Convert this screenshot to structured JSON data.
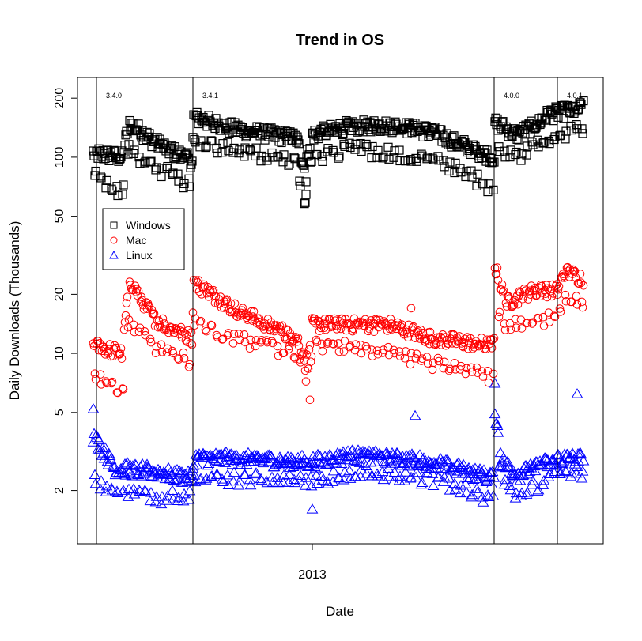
{
  "chart_data": {
    "type": "scatter",
    "title": "Trend in OS",
    "xlabel": "Date",
    "ylabel": "Daily Downloads (Thousands)",
    "y_scale": "log",
    "ylim": [
      1.07,
      255
    ],
    "y_ticks": [
      2,
      5,
      10,
      20,
      50,
      100,
      200
    ],
    "x_unit": "days since 2013-01-01",
    "xlim": [
      -297,
      368
    ],
    "x_day_range": [
      -277,
      343
    ],
    "x_ticks": [
      {
        "value": 0,
        "label": "2013"
      }
    ],
    "grid": false,
    "legend": {
      "placement": "left, upper-middle",
      "entries": [
        {
          "label": "Windows",
          "marker": "square",
          "color": "#000000"
        },
        {
          "label": "Mac",
          "marker": "circle",
          "color": "#ff0000"
        },
        {
          "label": "Linux",
          "marker": "triangle",
          "color": "#0000ff"
        }
      ]
    },
    "releases": [
      {
        "label": "3.4.0",
        "day": -273
      },
      {
        "label": "3.4.1",
        "day": -151
      },
      {
        "label": "4.0.0",
        "day": 230
      },
      {
        "label": "4.0.1",
        "day": 310
      }
    ],
    "series": [
      {
        "name": "Windows",
        "color": "#000000",
        "marker": "square",
        "trend_weekday_weekend": [
          [
            -277,
            105,
            80
          ],
          [
            -240,
            100,
            65
          ],
          [
            -232,
            150,
            110
          ],
          [
            -200,
            120,
            90
          ],
          [
            -152,
            95,
            72
          ],
          [
            -150,
            160,
            120
          ],
          [
            -100,
            140,
            110
          ],
          [
            -20,
            125,
            95
          ],
          [
            -10,
            88,
            60
          ],
          [
            0,
            130,
            100
          ],
          [
            50,
            145,
            110
          ],
          [
            100,
            145,
            105
          ],
          [
            150,
            135,
            100
          ],
          [
            229,
            100,
            70
          ],
          [
            231,
            150,
            110
          ],
          [
            260,
            130,
            100
          ],
          [
            300,
            165,
            125
          ],
          [
            343,
            180,
            140
          ]
        ],
        "outliers": [
          [
            -10,
            58
          ],
          [
            -8,
            75
          ]
        ]
      },
      {
        "name": "Mac",
        "color": "#ff0000",
        "marker": "circle",
        "trend_weekday_weekend": [
          [
            -277,
            11,
            8
          ],
          [
            -240,
            10,
            6.2
          ],
          [
            -232,
            24,
            14
          ],
          [
            -200,
            15,
            11
          ],
          [
            -152,
            12,
            9
          ],
          [
            -150,
            23,
            15
          ],
          [
            -100,
            17,
            12
          ],
          [
            -20,
            12,
            10
          ],
          [
            -5,
            9,
            7
          ],
          [
            0,
            14,
            11
          ],
          [
            50,
            14,
            11
          ],
          [
            100,
            14,
            10
          ],
          [
            150,
            12,
            9
          ],
          [
            229,
            11,
            7.5
          ],
          [
            231,
            28,
            18
          ],
          [
            245,
            18,
            14
          ],
          [
            280,
            21,
            15
          ],
          [
            310,
            21,
            15
          ],
          [
            320,
            26,
            20
          ],
          [
            343,
            24,
            18
          ]
        ],
        "outliers": [
          [
            -3,
            5.8
          ],
          [
            125,
            17
          ]
        ]
      },
      {
        "name": "Linux",
        "color": "#0000ff",
        "marker": "triangle",
        "trend_weekday_weekend": [
          [
            -277,
            3.8,
            2.3
          ],
          [
            -250,
            2.6,
            2.0
          ],
          [
            -200,
            2.5,
            1.8
          ],
          [
            -152,
            2.3,
            1.9
          ],
          [
            -150,
            2.9,
            2.3
          ],
          [
            -100,
            2.9,
            2.3
          ],
          [
            0,
            2.8,
            2.2
          ],
          [
            50,
            3.0,
            2.5
          ],
          [
            100,
            2.9,
            2.4
          ],
          [
            150,
            2.8,
            2.3
          ],
          [
            229,
            2.3,
            1.8
          ],
          [
            231,
            5.0,
            3.5
          ],
          [
            240,
            2.8,
            2.3
          ],
          [
            260,
            2.4,
            1.9
          ],
          [
            310,
            2.9,
            2.4
          ],
          [
            343,
            2.9,
            2.5
          ]
        ],
        "outliers": [
          [
            -277,
            5.2
          ],
          [
            0,
            1.6
          ],
          [
            130,
            4.8
          ],
          [
            231,
            7.0
          ],
          [
            335,
            6.2
          ]
        ]
      }
    ]
  }
}
